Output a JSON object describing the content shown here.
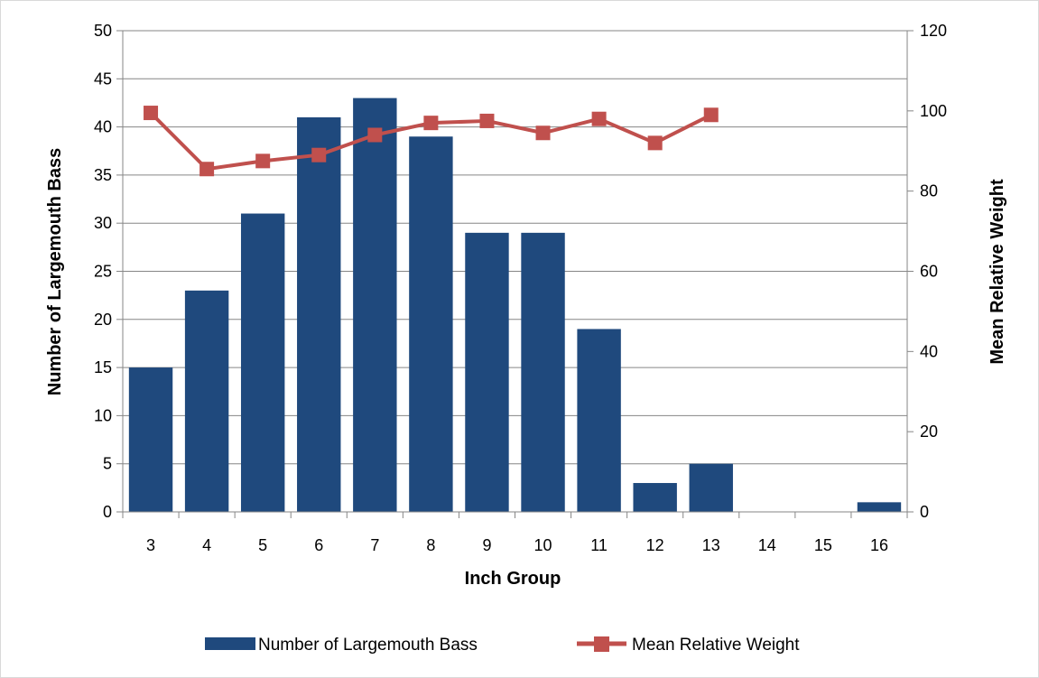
{
  "chart_data": {
    "type": "bar",
    "categories": [
      "3",
      "4",
      "5",
      "6",
      "7",
      "8",
      "9",
      "10",
      "11",
      "12",
      "13",
      "14",
      "15",
      "16"
    ],
    "series": [
      {
        "name": "Number of Largemouth Bass",
        "type": "bar",
        "axis": "left",
        "color": "#1f497d",
        "values": [
          15,
          23,
          31,
          41,
          43,
          39,
          29,
          29,
          19,
          3,
          5,
          0,
          0,
          1
        ]
      },
      {
        "name": "Mean Relative Weight",
        "type": "line",
        "axis": "right",
        "color": "#c0504d",
        "marker": "square",
        "values": [
          99.5,
          85.5,
          87.5,
          89,
          94,
          97,
          97.5,
          94.5,
          98,
          92,
          99,
          null,
          null,
          null
        ]
      }
    ],
    "xlabel": "Inch Group",
    "ylabel": "Number of Largemouth Bass",
    "y2label": "Mean Relative Weight",
    "ylim": [
      0,
      50
    ],
    "y2lim": [
      0,
      120
    ],
    "yticks": [
      "0",
      "5",
      "10",
      "15",
      "20",
      "25",
      "30",
      "35",
      "40",
      "45",
      "50"
    ],
    "y2ticks": [
      "0",
      "20",
      "40",
      "60",
      "80",
      "100",
      "120"
    ],
    "grid": true,
    "legend_position": "bottom",
    "gridline_color": "#868686",
    "axis_color": "#868686"
  }
}
